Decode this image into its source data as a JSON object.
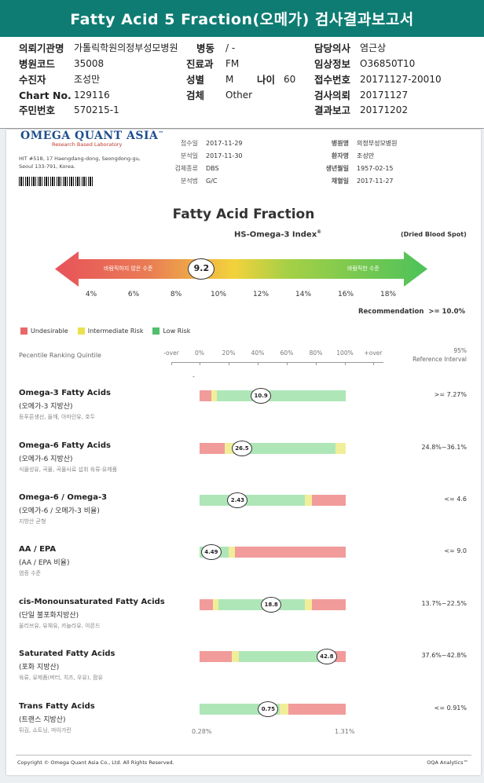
{
  "header": {
    "title": "Fatty Acid 5 Fraction(오메가) 검사결과보고서"
  },
  "info": {
    "institution_label": "의뢰기관명",
    "institution": "가톨릭학원의정부성모병원",
    "ward_label": "병동",
    "ward": "/ -",
    "doctor_label": "담당의사",
    "doctor": "염근상",
    "hospital_code_label": "병원코드",
    "hospital_code": "35008",
    "dept_label": "진료과",
    "dept": "FM",
    "clinical_label": "임상정보",
    "clinical": "O36850T10",
    "patient_label": "수진자",
    "patient": "조성만",
    "sex_label": "성별",
    "sex": "M",
    "age_label": "나이",
    "age": "60",
    "receipt_label": "접수번호",
    "receipt": "20171127-20010",
    "chart_label": "Chart No.",
    "chart": "129116",
    "test_label": "검체",
    "test": "Other",
    "request_label": "검사의뢰",
    "request": "20171127",
    "resident_label": "주민번호",
    "resident": "570215-1",
    "report_label": "결과보고",
    "report": "20171202"
  },
  "report": {
    "logo": "OMEGA QUANT ASIA",
    "logo_tm": "™",
    "logo_sub": "Research Based Laboratory",
    "addr1": "HIT #518, 17 Haengdang-dong, Seongdong-gu,",
    "addr2": "Seoul 133-791, Korea.",
    "meta_left": [
      {
        "label": "접수일",
        "value": "2017-11-29"
      },
      {
        "label": "분석일",
        "value": "2017-11-30"
      },
      {
        "label": "검체종류",
        "value": "DBS"
      },
      {
        "label": "분석법",
        "value": "G/C"
      }
    ],
    "meta_right": [
      {
        "label": "병원명",
        "value": "의정부성모병원"
      },
      {
        "label": "환자명",
        "value": "조성만"
      },
      {
        "label": "생년월일",
        "value": "1957-02-15"
      },
      {
        "label": "채혈일",
        "value": "2017-11-27"
      }
    ],
    "chart_title": "Fatty Acid Fraction",
    "index_title": "HS-Omega-3 Index",
    "index_reg": "®",
    "dbs": "(Dried Blood Spot)",
    "undesirable_text": "바람직하지 않은 수준",
    "desirable_text": "바람직한 수준",
    "index_value": "9.2",
    "recommendation_label": "Recommendation",
    "recommendation_value": ">= 10.0%",
    "legend": [
      {
        "label": "Undesirable",
        "color": "#e8676b"
      },
      {
        "label": "Intermediate Risk",
        "color": "#eae14f"
      },
      {
        "label": "Low Risk",
        "color": "#4fc06b"
      }
    ],
    "percentile_label": "Pecentile Ranking Quintile",
    "ref_head1": "95%",
    "ref_head2": "Reference Interval",
    "dash": "-",
    "min_label": "0.28%",
    "max_label": "1.31%",
    "footer_left": "Copyright © Omega Quant Asia Co., Ltd.  All Rights Reserved.",
    "footer_right": "OQA Analytics™"
  },
  "chart_data": {
    "type": "bar",
    "index_axis": {
      "ticks": [
        "4%",
        "6%",
        "8%",
        "10%",
        "12%",
        "14%",
        "16%",
        "18%"
      ],
      "min": 4,
      "max": 18,
      "value": 9.2
    },
    "percentile_scale": [
      "-over",
      "0%",
      "20%",
      "40%",
      "60%",
      "80%",
      "100%",
      "+over"
    ],
    "rows": [
      {
        "name": "Omega-3 Fatty Acids",
        "sub": "(오메가-3 지방산)",
        "food": "등푸른생선, 들깨, 아마인유, 호두",
        "value": "10.9",
        "pos": 0.42,
        "ref": ">= 7.27%",
        "segments": [
          [
            "#f29b9b",
            0,
            0.08
          ],
          [
            "#f1ee9a",
            0.08,
            0.12
          ],
          [
            "#aee6b8",
            0.12,
            1
          ]
        ]
      },
      {
        "name": "Omega-6 Fatty Acids",
        "sub": "(오메가-6 지방산)",
        "food": "식물성유, 곡물, 곡물사료 섭취 육류·유제품",
        "value": "26.5",
        "pos": 0.29,
        "ref": "24.8%~36.1%",
        "segments": [
          [
            "#f29b9b",
            0,
            0.17
          ],
          [
            "#f1ee9a",
            0.17,
            0.23
          ],
          [
            "#aee6b8",
            0.23,
            0.93
          ],
          [
            "#f1ee9a",
            0.93,
            1
          ]
        ]
      },
      {
        "name": "Omega-6 / Omega-3",
        "sub": "(오메가-6 / 오메가-3 비율)",
        "food": "지방산 균형",
        "value": "2.43",
        "pos": 0.26,
        "ref": "<= 4.6",
        "segments": [
          [
            "#aee6b8",
            0,
            0.72
          ],
          [
            "#f1ee9a",
            0.72,
            0.77
          ],
          [
            "#f29b9b",
            0.77,
            1
          ]
        ]
      },
      {
        "name": "AA / EPA",
        "sub": "(AA / EPA 비율)",
        "food": "염증 수준",
        "value": "4.49",
        "pos": 0.08,
        "ref": "<= 9.0",
        "segments": [
          [
            "#aee6b8",
            0,
            0.2
          ],
          [
            "#f1ee9a",
            0.2,
            0.24
          ],
          [
            "#f29b9b",
            0.24,
            1
          ]
        ]
      },
      {
        "name": "cis-Monounsaturated Fatty Acids",
        "sub": "(단일 불포화지방산)",
        "food": "올리브유, 유채유, 카놀라유, 아몬드",
        "value": "18.8",
        "pos": 0.49,
        "ref": "13.7%~22.5%",
        "segments": [
          [
            "#f29b9b",
            0,
            0.09
          ],
          [
            "#f1ee9a",
            0.09,
            0.13
          ],
          [
            "#aee6b8",
            0.13,
            0.72
          ],
          [
            "#f1ee9a",
            0.72,
            0.77
          ],
          [
            "#f29b9b",
            0.77,
            1
          ]
        ]
      },
      {
        "name": "Saturated Fatty Acids",
        "sub": "(포화 지방산)",
        "food": "육류, 유제품(버터, 치즈, 우유), 팜유",
        "value": "42.8",
        "pos": 0.87,
        "ref": "37.6%~42.8%",
        "segments": [
          [
            "#f29b9b",
            0,
            0.22
          ],
          [
            "#f1ee9a",
            0.22,
            0.27
          ],
          [
            "#aee6b8",
            0.27,
            0.82
          ],
          [
            "#f1ee9a",
            0.82,
            0.86
          ],
          [
            "#f29b9b",
            0.86,
            1
          ]
        ]
      },
      {
        "name": "Trans Fatty Acids",
        "sub": "(트랜스 지방산)",
        "food": "튀김, 쇼트닝, 마아가린",
        "value": "0.75",
        "pos": 0.47,
        "ref": "<= 0.91%",
        "segments": [
          [
            "#aee6b8",
            0,
            0.55
          ],
          [
            "#f1ee9a",
            0.55,
            0.61
          ],
          [
            "#f29b9b",
            0.61,
            1
          ]
        ]
      }
    ]
  }
}
